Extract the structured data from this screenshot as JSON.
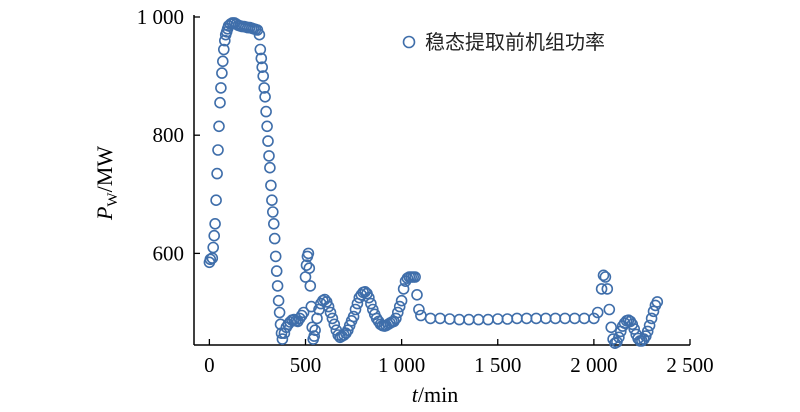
{
  "chart_data": {
    "type": "scatter",
    "xlabel": {
      "italic": "t",
      "rest": "/min"
    },
    "ylabel": {
      "italic": "P",
      "sub": "W",
      "rest": "/MW"
    },
    "xlim": [
      -80,
      2500
    ],
    "ylim": [
      445,
      1000
    ],
    "xticks": [
      {
        "value": 0,
        "label": "0"
      },
      {
        "value": 500,
        "label": "500"
      },
      {
        "value": 1000,
        "label": "1 000"
      },
      {
        "value": 1500,
        "label": "1 500"
      },
      {
        "value": 2000,
        "label": "2 000"
      },
      {
        "value": 2500,
        "label": "2 500"
      }
    ],
    "yticks": [
      {
        "value": 600,
        "label": "600"
      },
      {
        "value": 800,
        "label": "800"
      },
      {
        "value": 1000,
        "label": "1 000"
      }
    ],
    "grid": false,
    "legend_position": "top-right",
    "marker_color": "#3f6eaa",
    "series": [
      {
        "name": "稳态提取前机组功率",
        "marker": "open-circle",
        "points": [
          [
            0,
            585
          ],
          [
            5,
            590
          ],
          [
            15,
            592
          ],
          [
            20,
            610
          ],
          [
            25,
            630
          ],
          [
            30,
            650
          ],
          [
            35,
            690
          ],
          [
            40,
            735
          ],
          [
            45,
            775
          ],
          [
            50,
            815
          ],
          [
            55,
            855
          ],
          [
            60,
            880
          ],
          [
            65,
            905
          ],
          [
            70,
            925
          ],
          [
            75,
            945
          ],
          [
            80,
            960
          ],
          [
            85,
            970
          ],
          [
            90,
            975
          ],
          [
            95,
            980
          ],
          [
            100,
            985
          ],
          [
            110,
            988
          ],
          [
            120,
            990
          ],
          [
            130,
            990
          ],
          [
            140,
            988
          ],
          [
            150,
            986
          ],
          [
            160,
            985
          ],
          [
            170,
            984
          ],
          [
            180,
            984
          ],
          [
            190,
            983
          ],
          [
            200,
            982
          ],
          [
            210,
            982
          ],
          [
            220,
            981
          ],
          [
            230,
            980
          ],
          [
            240,
            979
          ],
          [
            250,
            978
          ],
          [
            260,
            970
          ],
          [
            265,
            945
          ],
          [
            270,
            930
          ],
          [
            275,
            915
          ],
          [
            280,
            900
          ],
          [
            285,
            880
          ],
          [
            290,
            865
          ],
          [
            295,
            840
          ],
          [
            300,
            815
          ],
          [
            305,
            790
          ],
          [
            310,
            765
          ],
          [
            315,
            745
          ],
          [
            320,
            715
          ],
          [
            325,
            690
          ],
          [
            330,
            670
          ],
          [
            335,
            650
          ],
          [
            340,
            625
          ],
          [
            345,
            595
          ],
          [
            350,
            570
          ],
          [
            355,
            545
          ],
          [
            360,
            520
          ],
          [
            365,
            500
          ],
          [
            370,
            480
          ],
          [
            375,
            465
          ],
          [
            380,
            455
          ],
          [
            390,
            465
          ],
          [
            400,
            475
          ],
          [
            410,
            480
          ],
          [
            420,
            484
          ],
          [
            430,
            487
          ],
          [
            440,
            488
          ],
          [
            450,
            486
          ],
          [
            460,
            485
          ],
          [
            470,
            490
          ],
          [
            480,
            495
          ],
          [
            490,
            500
          ],
          [
            500,
            560
          ],
          [
            505,
            580
          ],
          [
            510,
            595
          ],
          [
            515,
            600
          ],
          [
            520,
            575
          ],
          [
            525,
            545
          ],
          [
            530,
            510
          ],
          [
            535,
            475
          ],
          [
            540,
            455
          ],
          [
            545,
            460
          ],
          [
            550,
            470
          ],
          [
            560,
            490
          ],
          [
            570,
            505
          ],
          [
            580,
            515
          ],
          [
            590,
            520
          ],
          [
            600,
            522
          ],
          [
            610,
            518
          ],
          [
            620,
            510
          ],
          [
            630,
            500
          ],
          [
            640,
            490
          ],
          [
            650,
            480
          ],
          [
            660,
            470
          ],
          [
            670,
            462
          ],
          [
            680,
            458
          ],
          [
            690,
            460
          ],
          [
            700,
            462
          ],
          [
            710,
            465
          ],
          [
            720,
            470
          ],
          [
            730,
            478
          ],
          [
            740,
            486
          ],
          [
            750,
            493
          ],
          [
            760,
            505
          ],
          [
            770,
            515
          ],
          [
            780,
            525
          ],
          [
            790,
            530
          ],
          [
            800,
            534
          ],
          [
            810,
            535
          ],
          [
            820,
            532
          ],
          [
            830,
            525
          ],
          [
            840,
            515
          ],
          [
            850,
            505
          ],
          [
            860,
            497
          ],
          [
            870,
            490
          ],
          [
            880,
            485
          ],
          [
            890,
            480
          ],
          [
            900,
            478
          ],
          [
            910,
            477
          ],
          [
            920,
            478
          ],
          [
            930,
            480
          ],
          [
            940,
            482
          ],
          [
            950,
            484
          ],
          [
            960,
            485
          ],
          [
            970,
            490
          ],
          [
            980,
            500
          ],
          [
            990,
            510
          ],
          [
            1000,
            520
          ],
          [
            1010,
            540
          ],
          [
            1020,
            553
          ],
          [
            1030,
            558
          ],
          [
            1040,
            560
          ],
          [
            1050,
            560
          ],
          [
            1060,
            560
          ],
          [
            1070,
            560
          ],
          [
            1080,
            530
          ],
          [
            1090,
            505
          ],
          [
            1100,
            495
          ],
          [
            1150,
            490
          ],
          [
            1200,
            490
          ],
          [
            1250,
            489
          ],
          [
            1300,
            488
          ],
          [
            1350,
            488
          ],
          [
            1400,
            488
          ],
          [
            1450,
            488
          ],
          [
            1500,
            489
          ],
          [
            1550,
            489
          ],
          [
            1600,
            490
          ],
          [
            1650,
            490
          ],
          [
            1700,
            490
          ],
          [
            1750,
            490
          ],
          [
            1800,
            490
          ],
          [
            1850,
            490
          ],
          [
            1900,
            490
          ],
          [
            1950,
            490
          ],
          [
            2000,
            490
          ],
          [
            2020,
            500
          ],
          [
            2040,
            540
          ],
          [
            2050,
            563
          ],
          [
            2060,
            560
          ],
          [
            2070,
            540
          ],
          [
            2080,
            505
          ],
          [
            2090,
            475
          ],
          [
            2100,
            455
          ],
          [
            2110,
            448
          ],
          [
            2120,
            450
          ],
          [
            2130,
            458
          ],
          [
            2140,
            468
          ],
          [
            2150,
            477
          ],
          [
            2160,
            482
          ],
          [
            2170,
            486
          ],
          [
            2180,
            487
          ],
          [
            2190,
            485
          ],
          [
            2200,
            480
          ],
          [
            2210,
            472
          ],
          [
            2220,
            463
          ],
          [
            2230,
            456
          ],
          [
            2240,
            452
          ],
          [
            2250,
            452
          ],
          [
            2260,
            455
          ],
          [
            2270,
            460
          ],
          [
            2280,
            468
          ],
          [
            2290,
            478
          ],
          [
            2300,
            490
          ],
          [
            2310,
            502
          ],
          [
            2320,
            512
          ],
          [
            2330,
            518
          ]
        ]
      }
    ]
  }
}
